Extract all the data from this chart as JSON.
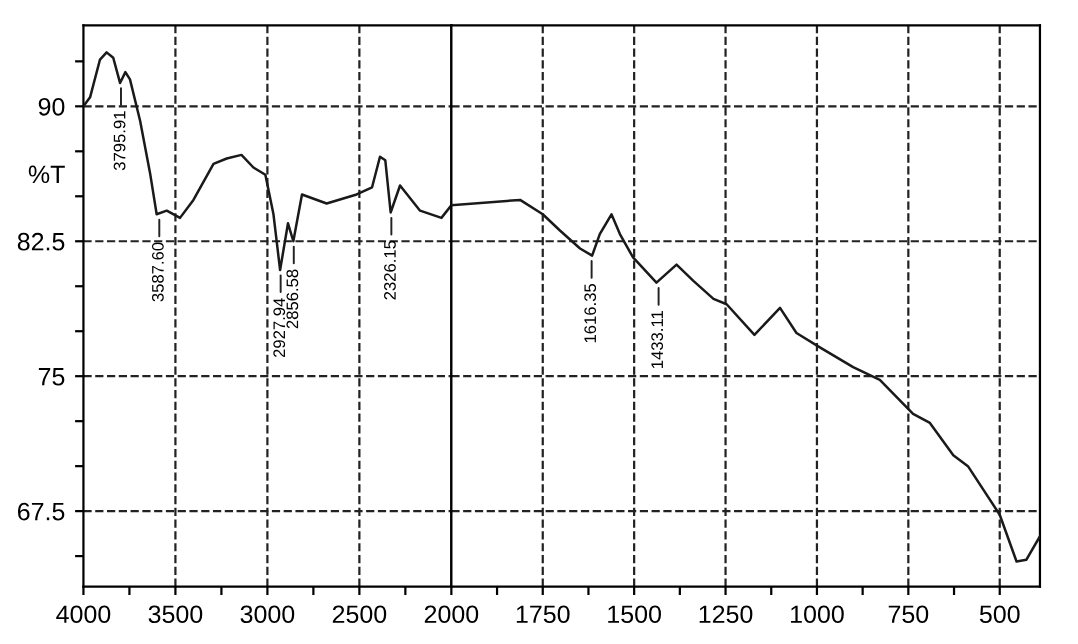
{
  "chart_data": [
    {
      "type": "line",
      "ylabel": "%T",
      "xlim": [
        4000,
        2000
      ],
      "ylim": [
        63.3,
        94.5
      ],
      "xticks": [
        4000,
        {
          "value": 3750,
          "label": null
        },
        3500,
        {
          "value": 3250,
          "label": null
        },
        3000,
        {
          "value": 2750,
          "label": null
        },
        2500,
        {
          "value": 2250,
          "label": null
        },
        2000
      ],
      "yticks": [
        {
          "value": 65,
          "label": null
        },
        67.5,
        {
          "value": 70,
          "label": null
        },
        {
          "value": 72.5,
          "label": null
        },
        75,
        {
          "value": 77.5,
          "label": null
        },
        {
          "value": 80,
          "label": null
        },
        82.5,
        {
          "value": 85,
          "label": null
        },
        {
          "value": 87.5,
          "label": null
        },
        90,
        {
          "value": 92.5,
          "label": null
        }
      ],
      "grid": true,
      "x": [
        4000,
        3964,
        3910,
        3874,
        3838,
        3801,
        3772,
        3747,
        3692,
        3638,
        3602,
        3547,
        3475,
        3402,
        3293,
        3221,
        3141,
        3076,
        3011,
        2967,
        2931,
        2888,
        2859,
        2812,
        2678,
        2515,
        2431,
        2388,
        2359,
        2330,
        2279,
        2170,
        2054,
        2000
      ],
      "series": [
        {
          "color": "#1a1a1a",
          "values": [
            90.0,
            90.5,
            92.6,
            93.0,
            92.7,
            91.3,
            91.9,
            91.5,
            89.2,
            86.3,
            84.0,
            84.2,
            83.8,
            84.8,
            86.8,
            87.1,
            87.3,
            86.6,
            86.2,
            84.0,
            80.9,
            83.5,
            82.5,
            85.1,
            84.6,
            85.1,
            85.5,
            87.2,
            87.0,
            84.1,
            85.6,
            84.2,
            83.8,
            84.5
          ]
        }
      ],
      "annotations": [
        {
          "text": "3795.91",
          "x": 3795.91,
          "y": 91.3
        },
        {
          "text": "3587.60",
          "x": 3587.6,
          "y": 84.0
        },
        {
          "text": "2927.94",
          "x": 2927.94,
          "y": 80.9
        },
        {
          "text": "2856.58",
          "x": 2856.58,
          "y": 82.5
        },
        {
          "text": "2326.15",
          "x": 2326.15,
          "y": 84.1
        }
      ]
    },
    {
      "type": "line",
      "tick_labels": "x",
      "xlim": [
        2000,
        390
      ],
      "ylim": [
        63.3,
        94.5
      ],
      "xticks": [
        {
          "value": 1875,
          "label": null
        },
        1750,
        {
          "value": 1625,
          "label": null
        },
        1500,
        {
          "value": 1375,
          "label": null
        },
        1250,
        {
          "value": 1125,
          "label": null
        },
        1000,
        {
          "value": 875,
          "label": null
        },
        750,
        {
          "value": 625,
          "label": null
        },
        500
      ],
      "yticks": [
        67.5,
        75,
        82.5,
        90
      ],
      "grid": true,
      "x": [
        2000,
        1812,
        1750,
        1703,
        1648,
        1615,
        1594,
        1562,
        1539,
        1503,
        1439,
        1384,
        1338,
        1283,
        1247,
        1171,
        1101,
        1056,
        992,
        901,
        828,
        737,
        691,
        627,
        587,
        500,
        454,
        427,
        390
      ],
      "series": [
        {
          "color": "#1a1a1a",
          "values": [
            84.5,
            84.8,
            84.0,
            83.1,
            82.1,
            81.7,
            82.9,
            84.0,
            82.9,
            81.6,
            80.2,
            81.2,
            80.3,
            79.3,
            79.0,
            77.3,
            78.8,
            77.4,
            76.6,
            75.5,
            74.8,
            72.9,
            72.4,
            70.6,
            70.0,
            67.3,
            64.7,
            64.8,
            66.1
          ]
        }
      ],
      "annotations": [
        {
          "text": "1616.35",
          "x": 1616.35,
          "y": 81.7
        },
        {
          "text": "1433.11",
          "x": 1433.11,
          "y": 80.2
        }
      ]
    }
  ]
}
